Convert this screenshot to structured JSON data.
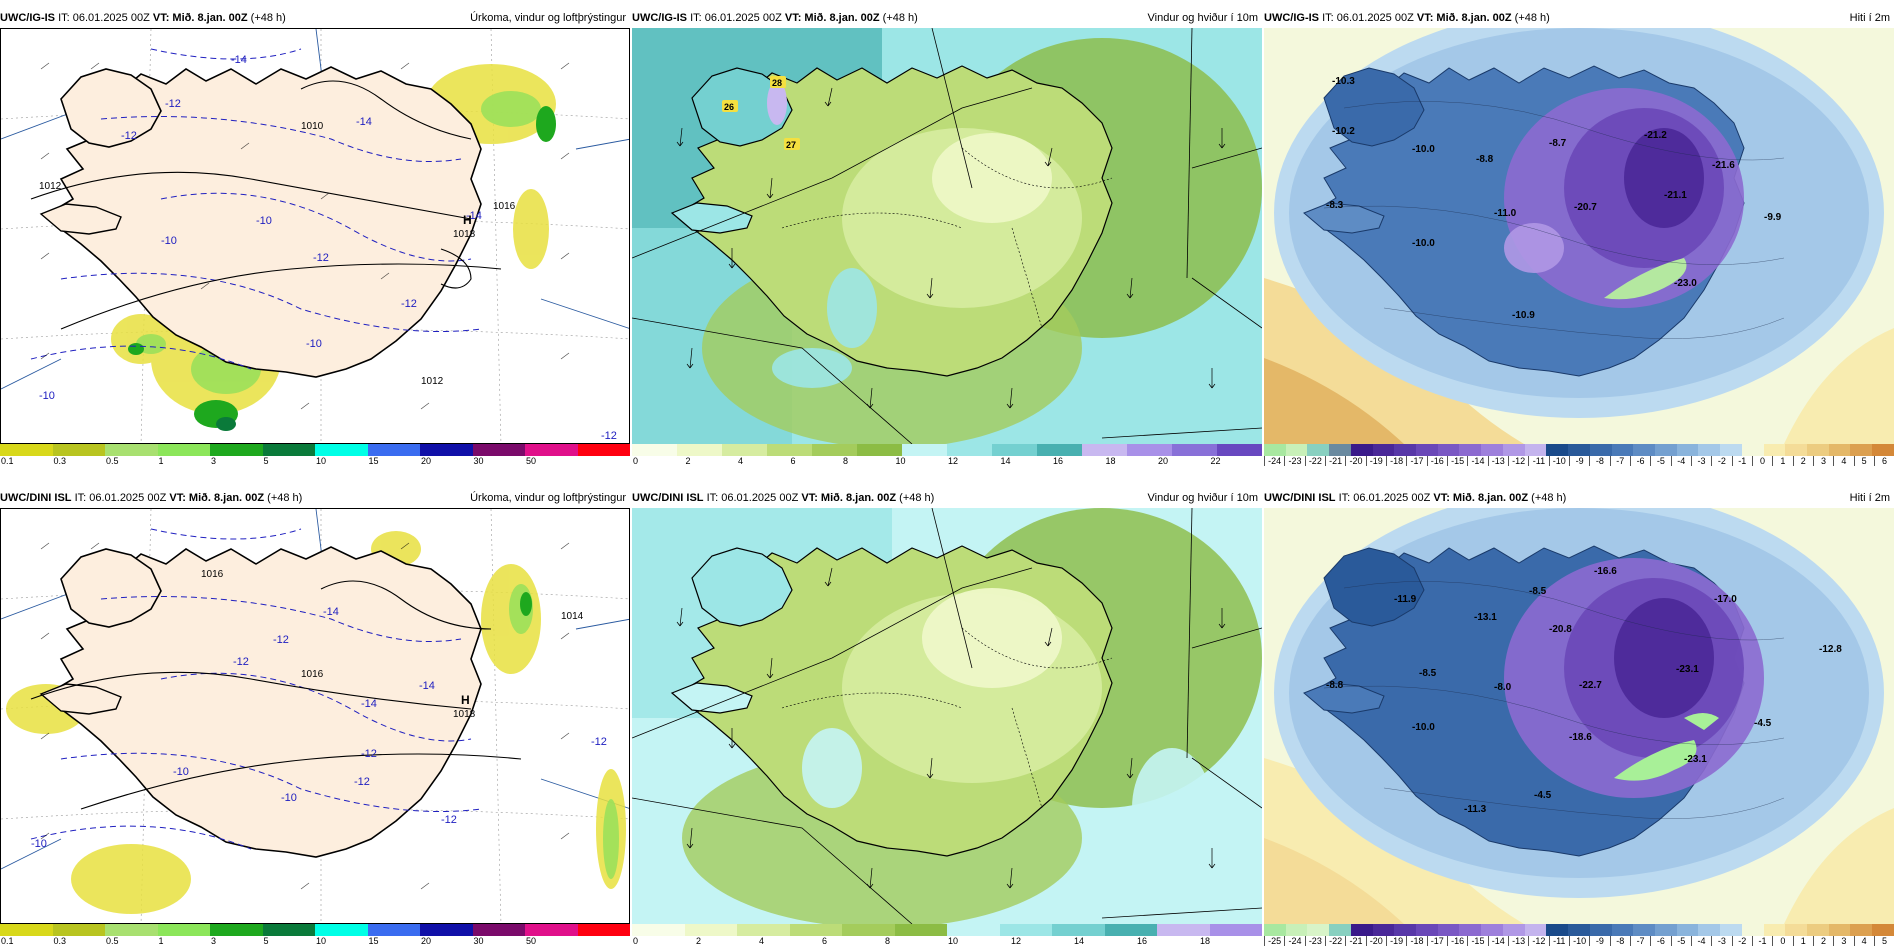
{
  "panels": {
    "p1": {
      "model": "UWC/IG-IS",
      "it": "IT: 06.01.2025 00Z",
      "vt_label": "VT:",
      "vt": "Mið. 8.jan. 00Z",
      "lead": "(+48 h)",
      "title": "Úrkoma, vindur og loftþrýstingur",
      "labels": {
        "h": "H",
        "p1": "1018",
        "p2": "1012",
        "p3": "1016",
        "p4": "1010",
        "p5": "1012",
        "b1": "-14",
        "b2": "-12",
        "b3": "-14",
        "b4": "-10",
        "b5": "-12",
        "b6": "-10",
        "b7": "-12",
        "b8": "-10",
        "b9": "-14",
        "b10": "-12",
        "b11": "-12",
        "b12": "-10"
      }
    },
    "p2": {
      "model": "UWC/IG-IS",
      "it": "IT: 06.01.2025 00Z",
      "vt_label": "VT:",
      "vt": "Mið. 8.jan. 00Z",
      "lead": "(+48 h)",
      "title": "Vindur og hviður í 10m",
      "labels": {
        "g1": "28",
        "g2": "26",
        "g3": "27"
      }
    },
    "p3": {
      "model": "UWC/IG-IS",
      "it": "IT: 06.01.2025 00Z",
      "vt_label": "VT:",
      "vt": "Mið. 8.jan. 00Z",
      "lead": "(+48 h)",
      "title": "Hiti í 2m",
      "labels": {
        "t1": "-10.3",
        "t2": "-10.2",
        "t3": "-10.0",
        "t4": "-8.8",
        "t5": "-8.7",
        "t6": "-21.2",
        "t7": "-21.6",
        "t8": "-8.3",
        "t9": "-11.0",
        "t10": "-20.7",
        "t11": "-21.1",
        "t12": "-9.9",
        "t13": "-10.0",
        "t14": "-23.0",
        "t15": "-10.9"
      }
    },
    "p4": {
      "model": "UWC/DINI ISL",
      "it": "IT: 06.01.2025 00Z",
      "vt_label": "VT:",
      "vt": "Mið. 8.jan. 00Z",
      "lead": "(+48 h)",
      "title": "Úrkoma, vindur og loftþrýstingur",
      "labels": {
        "h": "H",
        "p1": "1018",
        "p2": "1016",
        "p3": "1014",
        "p4": "1016",
        "b1": "-14",
        "b2": "-12",
        "b3": "-12",
        "b4": "-14",
        "b5": "-14",
        "b6": "-12",
        "b7": "-10",
        "b8": "-10",
        "b9": "-12",
        "b10": "-12",
        "b11": "-10",
        "b12": "-12"
      }
    },
    "p5": {
      "model": "UWC/DINI ISL",
      "it": "IT: 06.01.2025 00Z",
      "vt_label": "VT:",
      "vt": "Mið. 8.jan. 00Z",
      "lead": "(+48 h)",
      "title": "Vindur og hviður í 10m"
    },
    "p6": {
      "model": "UWC/DINI ISL",
      "it": "IT: 06.01.2025 00Z",
      "vt_label": "VT:",
      "vt": "Mið. 8.jan. 00Z",
      "lead": "(+48 h)",
      "title": "Hiti í 2m",
      "labels": {
        "t1": "-16.6",
        "t2": "-11.9",
        "t3": "-8.5",
        "t4": "-13.1",
        "t5": "-20.8",
        "t6": "-17.0",
        "t7": "-12.8",
        "t8": "-8.8",
        "t9": "-8.5",
        "t10": "-8.0",
        "t11": "-22.7",
        "t12": "-23.1",
        "t13": "-10.0",
        "t14": "-18.6",
        "t15": "-4.5",
        "t16": "-23.1",
        "t17": "-4.5",
        "t18": "-11.3"
      }
    }
  },
  "legends": {
    "precip": {
      "colors": [
        "#d8d81a",
        "#b8c420",
        "#a8e070",
        "#8ce65a",
        "#1ea81e",
        "#0a7a3a",
        "#00ffe6",
        "#3a6cf0",
        "#1010a8",
        "#7a0a6a",
        "#e0108a",
        "#ff0010"
      ],
      "ticks": [
        "0.1",
        "0.3",
        "0.5",
        "1",
        "3",
        "5",
        "10",
        "15",
        "20",
        "30",
        "50"
      ]
    },
    "wind": {
      "colors": [
        "#f8fde8",
        "#eef8c8",
        "#d6eca0",
        "#bcdc78",
        "#a4cc5c",
        "#8cbc44",
        "#c4f4f4",
        "#9ce6e6",
        "#74d0d0",
        "#48b0b0",
        "#c8b8f0",
        "#a890e8",
        "#8870d8",
        "#6848c0"
      ],
      "ticks": [
        "0",
        "2",
        "4",
        "6",
        "8",
        "10",
        "12",
        "14",
        "16",
        "18",
        "20",
        "22"
      ]
    },
    "wind2": {
      "colors": [
        "#f8fde8",
        "#eef8c8",
        "#d6eca0",
        "#bcdc78",
        "#a4cc5c",
        "#8cbc44",
        "#c4f4f4",
        "#9ce6e6",
        "#74d0d0",
        "#48b0b0",
        "#c8b8f0",
        "#a890e8"
      ],
      "ticks": [
        "0",
        "2",
        "4",
        "6",
        "8",
        "10",
        "12",
        "14",
        "16",
        "18"
      ]
    },
    "temp": {
      "colors": [
        "#a8e8a0",
        "#c8f0b8",
        "#88d0c0",
        "#6a8aa0",
        "#3a1a8a",
        "#4a2898",
        "#5838a8",
        "#6a48b8",
        "#7a58c4",
        "#8c6ad0",
        "#9e80dc",
        "#b098e6",
        "#c4b4ee",
        "#1a4a8a",
        "#2a5a9a",
        "#3a6aaa",
        "#4a7ab8",
        "#5e8cc4",
        "#74a0d0",
        "#8ab4dc",
        "#a4c8e8",
        "#bcdaf0",
        "#f4f8dc",
        "#f8ecb0",
        "#f4dc98",
        "#eccc80",
        "#e4b868",
        "#dca050",
        "#d48838"
      ],
      "ticks": [
        "-24",
        "-23",
        "-22",
        "-21",
        "-20",
        "-19",
        "-18",
        "-17",
        "-16",
        "-15",
        "-14",
        "-13",
        "-12",
        "-11",
        "-10",
        "-9",
        "-8",
        "-7",
        "-6",
        "-5",
        "-4",
        "-3",
        "-2",
        "-1",
        "0",
        "1",
        "2",
        "3",
        "4",
        "5",
        "6"
      ]
    },
    "temp2": {
      "colors": [
        "#a8e8a0",
        "#c8f0b8",
        "#d8f4c8",
        "#88d0c0",
        "#3a1a8a",
        "#4a2898",
        "#5838a8",
        "#6a48b8",
        "#7a58c4",
        "#8c6ad0",
        "#9e80dc",
        "#b098e6",
        "#c4b4ee",
        "#1a4a8a",
        "#2a5a9a",
        "#3a6aaa",
        "#4a7ab8",
        "#5e8cc4",
        "#74a0d0",
        "#8ab4dc",
        "#a4c8e8",
        "#bcdaf0",
        "#f4f8dc",
        "#f8ecb0",
        "#f4dc98",
        "#eccc80",
        "#e4b868",
        "#dca050",
        "#d48838"
      ],
      "ticks": [
        "-25",
        "-24",
        "-23",
        "-22",
        "-21",
        "-20",
        "-19",
        "-18",
        "-17",
        "-16",
        "-15",
        "-14",
        "-13",
        "-12",
        "-11",
        "-10",
        "-9",
        "-8",
        "-7",
        "-6",
        "-5",
        "-4",
        "-3",
        "-2",
        "-1",
        "0",
        "1",
        "2",
        "3",
        "4",
        "5"
      ]
    }
  }
}
